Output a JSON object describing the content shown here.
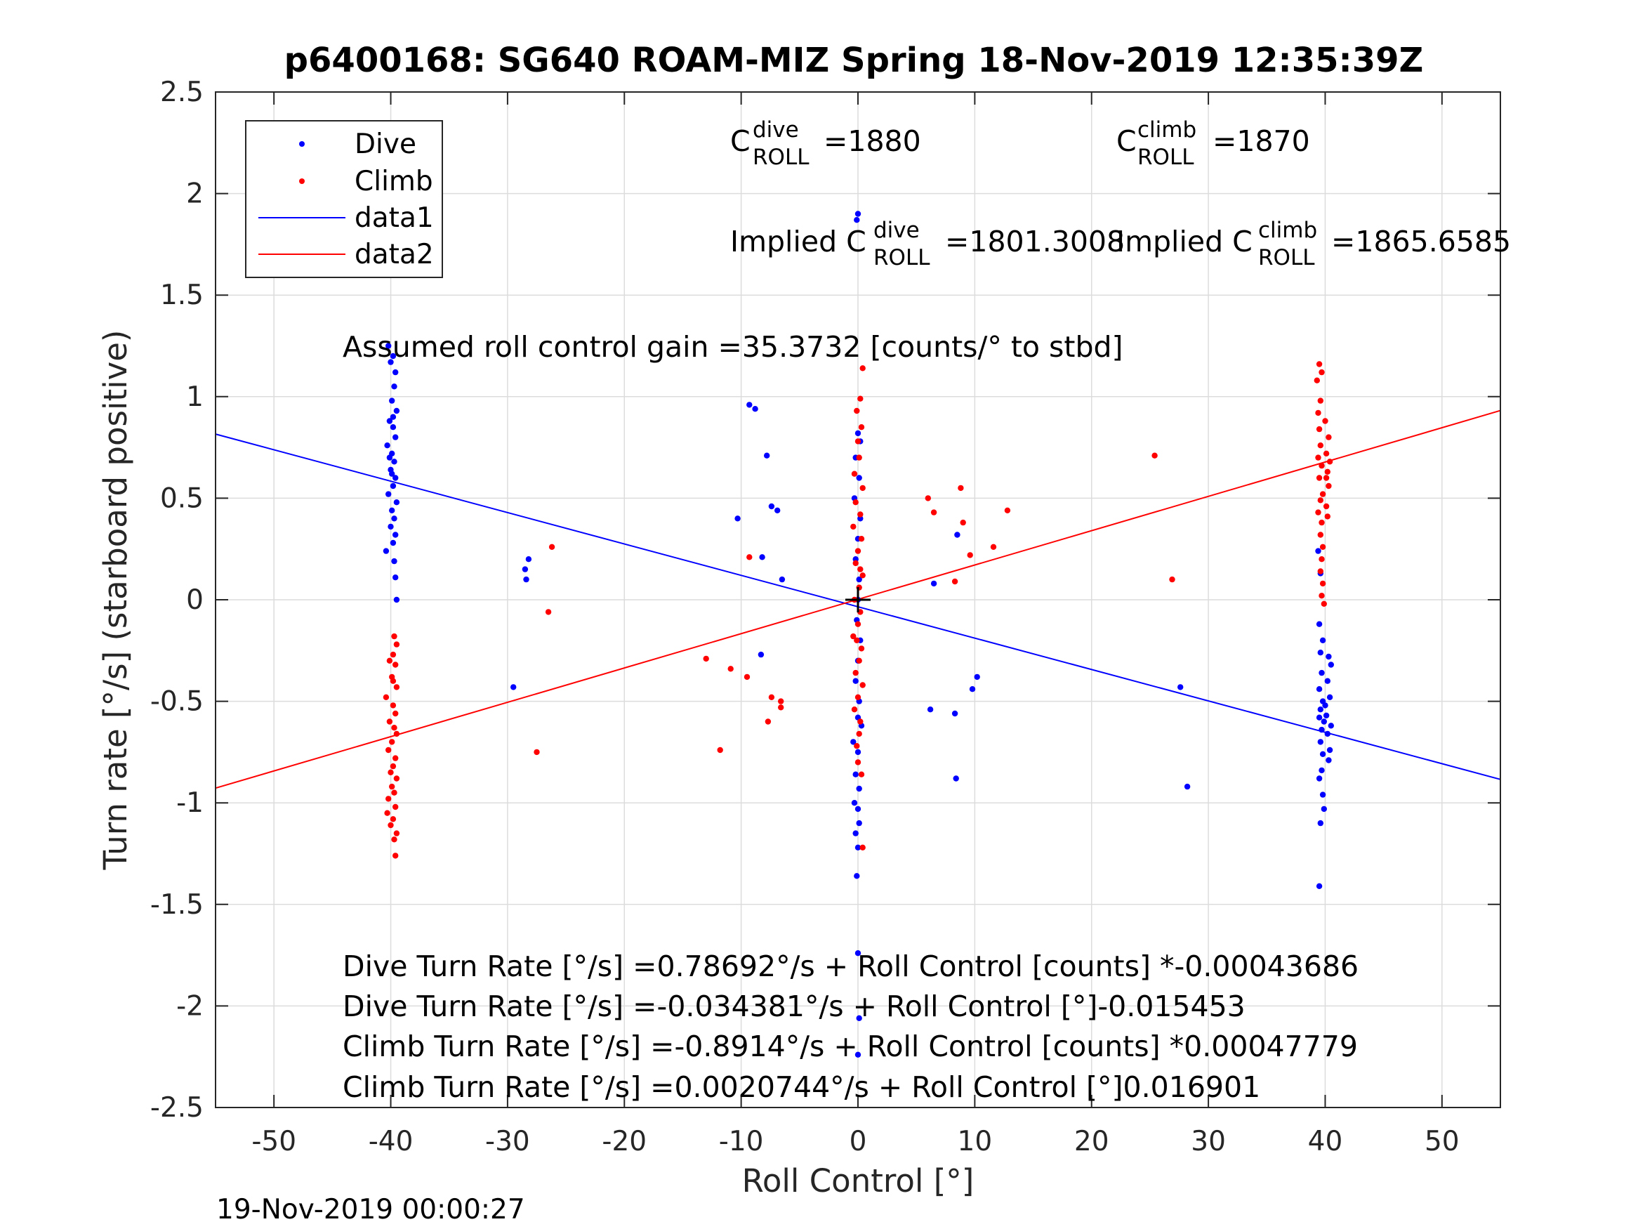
{
  "chart_data": {
    "type": "scatter",
    "title": "p6400168: SG640 ROAM-MIZ Spring 18-Nov-2019 12:35:39Z",
    "xlabel": "Roll Control [°]",
    "ylabel": "Turn rate [°/s] (starboard positive)",
    "xlim": [
      -55,
      55
    ],
    "ylim": [
      -2.5,
      2.5
    ],
    "xticks": [
      -50,
      -40,
      -30,
      -20,
      -10,
      0,
      10,
      20,
      30,
      40,
      50
    ],
    "yticks": [
      -2.5,
      -2,
      -1.5,
      -1,
      -0.5,
      0,
      0.5,
      1,
      1.5,
      2,
      2.5
    ],
    "xtick_labels": [
      "-50",
      "-40",
      "-30",
      "-20",
      "-10",
      "0",
      "10",
      "20",
      "30",
      "40",
      "50"
    ],
    "ytick_labels": [
      "-2.5",
      "-2",
      "-1.5",
      "-1",
      "-0.5",
      "0",
      "0.5",
      "1",
      "1.5",
      "2",
      "2.5"
    ],
    "grid": true,
    "legend_position": "top-left",
    "legend": [
      "Dive",
      "Climb",
      "data1",
      "data2"
    ],
    "center_marker": {
      "x": 0,
      "y": 0
    },
    "series": [
      {
        "name": "Dive",
        "style": "points",
        "color": "#0000ff",
        "points": [
          [
            -40.2,
            1.25
          ],
          [
            -39.8,
            1.2
          ],
          [
            -40.0,
            1.17
          ],
          [
            -39.6,
            1.12
          ],
          [
            -39.7,
            1.05
          ],
          [
            -39.9,
            0.98
          ],
          [
            -39.5,
            0.93
          ],
          [
            -40.1,
            0.88
          ],
          [
            -39.8,
            0.85
          ],
          [
            -39.6,
            0.8
          ],
          [
            -40.3,
            0.76
          ],
          [
            -39.9,
            0.72
          ],
          [
            -39.7,
            0.68
          ],
          [
            -40.0,
            0.64
          ],
          [
            -39.6,
            0.6
          ],
          [
            -39.8,
            0.56
          ],
          [
            -40.2,
            0.52
          ],
          [
            -39.5,
            0.48
          ],
          [
            -39.9,
            0.44
          ],
          [
            -39.7,
            0.4
          ],
          [
            -40.0,
            0.36
          ],
          [
            -39.6,
            0.32
          ],
          [
            -39.8,
            0.28
          ],
          [
            -40.4,
            0.24
          ],
          [
            -39.7,
            0.19
          ],
          [
            -39.6,
            0.11
          ],
          [
            -39.5,
            0.0
          ],
          [
            -39.9,
            0.62
          ],
          [
            -40.1,
            0.7
          ],
          [
            -39.8,
            0.9
          ],
          [
            -28.5,
            0.15
          ],
          [
            -28.2,
            0.2
          ],
          [
            -28.4,
            0.1
          ],
          [
            -29.5,
            -0.43
          ],
          [
            -9.3,
            0.96
          ],
          [
            -8.8,
            0.94
          ],
          [
            -7.8,
            0.71
          ],
          [
            -7.4,
            0.46
          ],
          [
            -6.9,
            0.44
          ],
          [
            -10.3,
            0.4
          ],
          [
            -8.2,
            0.21
          ],
          [
            -6.5,
            0.1
          ],
          [
            -8.3,
            -0.27
          ],
          [
            0.0,
            1.9
          ],
          [
            -0.1,
            1.87
          ],
          [
            0.0,
            0.82
          ],
          [
            0.2,
            0.78
          ],
          [
            -0.2,
            0.7
          ],
          [
            0.1,
            0.6
          ],
          [
            -0.3,
            0.5
          ],
          [
            0.2,
            0.4
          ],
          [
            0.0,
            0.3
          ],
          [
            -0.2,
            0.2
          ],
          [
            0.1,
            0.1
          ],
          [
            0.0,
            0.0
          ],
          [
            -0.1,
            -0.1
          ],
          [
            0.2,
            -0.2
          ],
          [
            0.0,
            -0.3
          ],
          [
            -0.2,
            -0.4
          ],
          [
            0.1,
            -0.5
          ],
          [
            0.0,
            -0.58
          ],
          [
            0.3,
            -0.62
          ],
          [
            -0.4,
            -0.7
          ],
          [
            0.0,
            -0.75
          ],
          [
            -0.2,
            -0.86
          ],
          [
            0.1,
            -0.93
          ],
          [
            -0.3,
            -1.0
          ],
          [
            0.0,
            -1.03
          ],
          [
            0.1,
            -1.1
          ],
          [
            -0.2,
            -1.15
          ],
          [
            0.0,
            -1.22
          ],
          [
            -0.1,
            -1.36
          ],
          [
            0.0,
            -1.74
          ],
          [
            0.1,
            -2.06
          ],
          [
            0.0,
            -2.24
          ],
          [
            6.5,
            0.08
          ],
          [
            8.5,
            0.32
          ],
          [
            6.2,
            -0.54
          ],
          [
            8.3,
            -0.56
          ],
          [
            8.4,
            -0.88
          ],
          [
            9.8,
            -0.44
          ],
          [
            10.2,
            -0.38
          ],
          [
            27.6,
            -0.43
          ],
          [
            28.2,
            -0.92
          ],
          [
            39.4,
            0.24
          ],
          [
            39.6,
            0.13
          ],
          [
            39.5,
            -0.12
          ],
          [
            39.8,
            -0.2
          ],
          [
            39.6,
            -0.26
          ],
          [
            40.3,
            -0.28
          ],
          [
            40.5,
            -0.32
          ],
          [
            39.7,
            -0.36
          ],
          [
            40.2,
            -0.4
          ],
          [
            39.5,
            -0.44
          ],
          [
            40.4,
            -0.48
          ],
          [
            39.8,
            -0.5
          ],
          [
            39.6,
            -0.54
          ],
          [
            40.1,
            -0.57
          ],
          [
            39.9,
            -0.6
          ],
          [
            40.5,
            -0.62
          ],
          [
            39.7,
            -0.64
          ],
          [
            40.2,
            -0.66
          ],
          [
            39.6,
            -0.7
          ],
          [
            40.4,
            -0.74
          ],
          [
            39.8,
            -0.76
          ],
          [
            40.3,
            -0.79
          ],
          [
            39.7,
            -0.84
          ],
          [
            39.5,
            -0.88
          ],
          [
            39.8,
            -0.96
          ],
          [
            39.9,
            -1.03
          ],
          [
            39.6,
            -1.1
          ],
          [
            39.5,
            -1.41
          ],
          [
            40.0,
            -0.52
          ],
          [
            39.5,
            -0.58
          ]
        ]
      },
      {
        "name": "Climb",
        "style": "points",
        "color": "#ff0000",
        "points": [
          [
            -39.7,
            -0.18
          ],
          [
            -39.5,
            -0.22
          ],
          [
            -39.8,
            -0.27
          ],
          [
            -39.6,
            -0.32
          ],
          [
            -39.9,
            -0.38
          ],
          [
            -39.5,
            -0.43
          ],
          [
            -40.4,
            -0.48
          ],
          [
            -39.8,
            -0.52
          ],
          [
            -39.6,
            -0.56
          ],
          [
            -40.1,
            -0.6
          ],
          [
            -39.7,
            -0.63
          ],
          [
            -39.5,
            -0.66
          ],
          [
            -39.9,
            -0.7
          ],
          [
            -40.2,
            -0.74
          ],
          [
            -39.6,
            -0.78
          ],
          [
            -39.8,
            -0.82
          ],
          [
            -40.0,
            -0.85
          ],
          [
            -39.5,
            -0.88
          ],
          [
            -39.9,
            -0.92
          ],
          [
            -39.7,
            -0.95
          ],
          [
            -40.2,
            -0.98
          ],
          [
            -39.6,
            -1.02
          ],
          [
            -40.3,
            -1.05
          ],
          [
            -39.8,
            -1.08
          ],
          [
            -40.0,
            -1.11
          ],
          [
            -39.5,
            -1.15
          ],
          [
            -39.7,
            -1.18
          ],
          [
            -39.6,
            -1.26
          ],
          [
            -39.8,
            -0.4
          ],
          [
            -40.1,
            -0.3
          ],
          [
            -26.2,
            0.26
          ],
          [
            -26.5,
            -0.06
          ],
          [
            -27.5,
            -0.75
          ],
          [
            -13.0,
            -0.29
          ],
          [
            -10.9,
            -0.34
          ],
          [
            -11.8,
            -0.74
          ],
          [
            -9.3,
            0.21
          ],
          [
            -9.5,
            -0.38
          ],
          [
            -7.7,
            -0.6
          ],
          [
            -7.4,
            -0.48
          ],
          [
            -6.6,
            -0.5
          ],
          [
            -6.6,
            -0.53
          ],
          [
            0.4,
            1.14
          ],
          [
            0.2,
            0.99
          ],
          [
            -0.1,
            0.93
          ],
          [
            0.3,
            0.85
          ],
          [
            0.0,
            0.78
          ],
          [
            0.1,
            0.7
          ],
          [
            -0.3,
            0.62
          ],
          [
            0.4,
            0.55
          ],
          [
            -0.2,
            0.48
          ],
          [
            0.2,
            0.42
          ],
          [
            -0.4,
            0.36
          ],
          [
            0.3,
            0.3
          ],
          [
            0.0,
            0.24
          ],
          [
            -0.2,
            0.18
          ],
          [
            0.4,
            0.12
          ],
          [
            0.1,
            0.06
          ],
          [
            -0.3,
            0.0
          ],
          [
            0.2,
            -0.06
          ],
          [
            0.0,
            -0.12
          ],
          [
            -0.4,
            -0.18
          ],
          [
            0.3,
            -0.24
          ],
          [
            0.1,
            -0.3
          ],
          [
            -0.2,
            -0.36
          ],
          [
            0.4,
            -0.42
          ],
          [
            0.0,
            -0.48
          ],
          [
            -0.3,
            -0.54
          ],
          [
            0.2,
            -0.6
          ],
          [
            0.1,
            -0.66
          ],
          [
            -0.1,
            -0.72
          ],
          [
            0.0,
            -0.8
          ],
          [
            0.3,
            -0.86
          ],
          [
            0.4,
            -1.22
          ],
          [
            0.2,
            0.15
          ],
          [
            -0.1,
            -0.2
          ],
          [
            6.0,
            0.5
          ],
          [
            6.5,
            0.43
          ],
          [
            8.8,
            0.55
          ],
          [
            9.0,
            0.38
          ],
          [
            9.6,
            0.22
          ],
          [
            8.3,
            0.09
          ],
          [
            11.6,
            0.26
          ],
          [
            12.8,
            0.44
          ],
          [
            25.4,
            0.71
          ],
          [
            26.9,
            0.1
          ],
          [
            39.5,
            1.16
          ],
          [
            39.7,
            1.12
          ],
          [
            39.3,
            1.08
          ],
          [
            39.6,
            0.98
          ],
          [
            39.4,
            0.92
          ],
          [
            40.0,
            0.88
          ],
          [
            39.5,
            0.84
          ],
          [
            40.3,
            0.8
          ],
          [
            39.6,
            0.76
          ],
          [
            40.1,
            0.72
          ],
          [
            39.4,
            0.7
          ],
          [
            40.4,
            0.68
          ],
          [
            39.7,
            0.66
          ],
          [
            40.2,
            0.63
          ],
          [
            39.5,
            0.6
          ],
          [
            40.3,
            0.56
          ],
          [
            39.8,
            0.52
          ],
          [
            39.6,
            0.49
          ],
          [
            40.1,
            0.46
          ],
          [
            39.4,
            0.43
          ],
          [
            40.2,
            0.41
          ],
          [
            39.7,
            0.38
          ],
          [
            39.6,
            0.32
          ],
          [
            39.8,
            0.26
          ],
          [
            39.7,
            0.2
          ],
          [
            39.6,
            0.14
          ],
          [
            39.8,
            0.08
          ],
          [
            39.7,
            0.02
          ],
          [
            39.9,
            -0.02
          ],
          [
            40.1,
            0.6
          ]
        ]
      },
      {
        "name": "data1",
        "style": "line",
        "color": "#0000ff",
        "x": [
          -55,
          55
        ],
        "y": [
          0.8156,
          -0.8844
        ]
      },
      {
        "name": "data2",
        "style": "line",
        "color": "#ff0000",
        "x": [
          -55,
          55
        ],
        "y": [
          -0.9275,
          0.9316
        ]
      }
    ],
    "annotations": {
      "c_dive": {
        "base": "C",
        "sup": "dive",
        "sub": "ROLL",
        "value": "=1880"
      },
      "c_climb": {
        "base": "C",
        "sup": "climb",
        "sub": "ROLL",
        "value": "=1870"
      },
      "implied_dive": {
        "prefix": "Implied C",
        "sup": "dive",
        "sub": "ROLL",
        "value": "=1801.3008"
      },
      "implied_climb": {
        "prefix": "Implied C",
        "sup": "climb",
        "sub": "ROLL",
        "value": "=1865.6585"
      },
      "gain": "Assumed roll control gain =35.3732 [counts/° to stbd]",
      "eq1": "Dive Turn Rate [°/s] =0.78692°/s + Roll Control [counts] *-0.00043686",
      "eq2": "Dive Turn Rate [°/s] =-0.034381°/s + Roll Control [°]-0.015453",
      "eq3": "Climb Turn Rate [°/s] =-0.8914°/s + Roll Control [counts] *0.00047779",
      "eq4": "Climb Turn Rate [°/s] =0.0020744°/s + Roll Control [°]0.016901"
    },
    "timestamp": "19-Nov-2019 00:00:27"
  }
}
